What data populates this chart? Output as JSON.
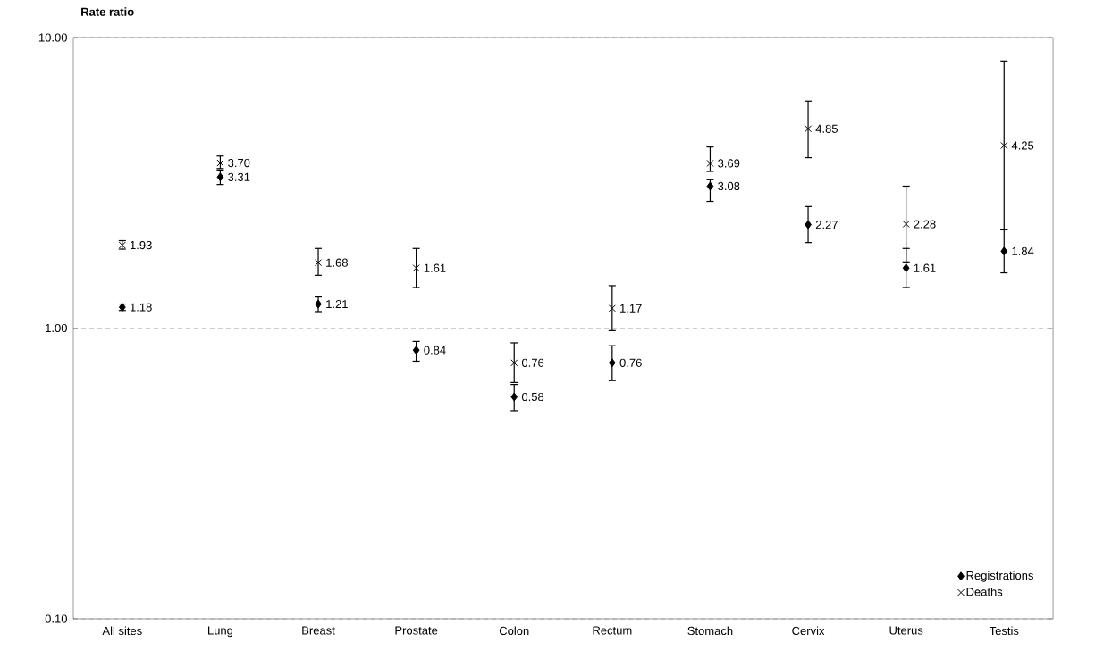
{
  "chart_data": {
    "type": "scatter",
    "ylabel": "Rate ratio",
    "categories": [
      "All sites",
      "Lung",
      "Breast",
      "Prostate",
      "Colon",
      "Rectum",
      "Stomach",
      "Cervix",
      "Uterus",
      "Testis"
    ],
    "series": [
      {
        "name": "Registrations",
        "color": "#000000",
        "marker": "diamond",
        "values": [
          1.18,
          3.31,
          1.21,
          0.84,
          0.58,
          0.76,
          3.08,
          2.27,
          1.61,
          1.84
        ],
        "value_labels": [
          "1.18",
          "3.31",
          "1.21",
          "0.84",
          "0.58",
          "0.76",
          "3.08",
          "2.27",
          "1.61",
          "1.84"
        ],
        "errors": [
          [
            1.15,
            1.21
          ],
          [
            3.12,
            3.5
          ],
          [
            1.14,
            1.28
          ],
          [
            0.77,
            0.9
          ],
          [
            0.52,
            0.64
          ],
          [
            0.66,
            0.87
          ],
          [
            2.73,
            3.24
          ],
          [
            1.97,
            2.62
          ],
          [
            1.38,
            1.88
          ],
          [
            1.55,
            2.18
          ]
        ]
      },
      {
        "name": "Deaths",
        "color": "#000000",
        "marker": "cross",
        "values": [
          1.93,
          3.7,
          1.68,
          1.61,
          0.76,
          1.17,
          3.69,
          4.85,
          2.28,
          4.25
        ],
        "value_labels": [
          "1.93",
          "3.70",
          "1.68",
          "1.61",
          "0.76",
          "1.17",
          "3.69",
          "4.85",
          "2.28",
          "4.25"
        ],
        "errors": [
          [
            1.87,
            2.0
          ],
          [
            3.54,
            3.91
          ],
          [
            1.52,
            1.88
          ],
          [
            1.38,
            1.88
          ],
          [
            0.65,
            0.89
          ],
          [
            0.98,
            1.4
          ],
          [
            3.46,
            4.2
          ],
          [
            3.86,
            6.04
          ],
          [
            1.69,
            3.08
          ],
          [
            2.18,
            8.3
          ]
        ]
      }
    ],
    "log": "y",
    "ylim": [
      0.1,
      10
    ],
    "yticks": [
      {
        "value": 0.1,
        "label": "0.10"
      },
      {
        "value": 1,
        "label": "1.00"
      },
      {
        "value": 10,
        "label": "10.00"
      }
    ],
    "grid": "y",
    "legend": "bottom right"
  }
}
